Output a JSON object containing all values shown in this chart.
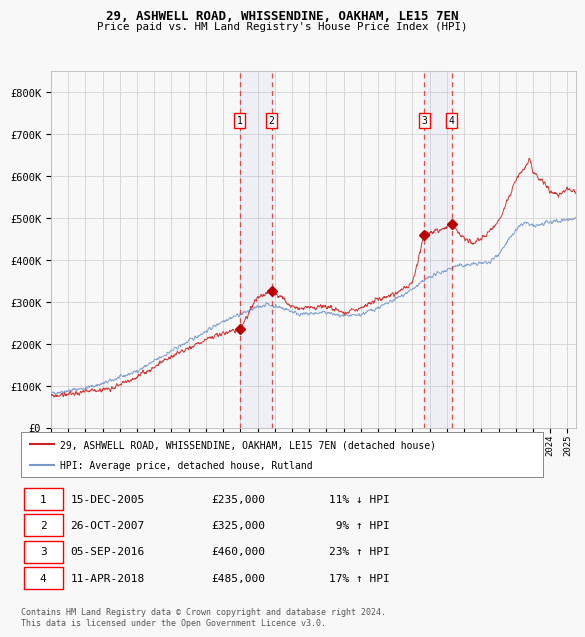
{
  "title1": "29, ASHWELL ROAD, WHISSENDINE, OAKHAM, LE15 7EN",
  "title2": "Price paid vs. HM Land Registry's House Price Index (HPI)",
  "ylim": [
    0,
    850000
  ],
  "yticks": [
    0,
    100000,
    200000,
    300000,
    400000,
    500000,
    600000,
    700000,
    800000
  ],
  "ytick_labels": [
    "£0",
    "£100K",
    "£200K",
    "£300K",
    "£400K",
    "£500K",
    "£600K",
    "£700K",
    "£800K"
  ],
  "hpi_color": "#7799cc",
  "price_color": "#cc2222",
  "marker_color": "#bb0000",
  "grid_color": "#cccccc",
  "bg_color": "#f8f8f8",
  "plot_bg_color": "#f8f8f8",
  "legend_house_label": "29, ASHWELL ROAD, WHISSENDINE, OAKHAM, LE15 7EN (detached house)",
  "legend_hpi_label": "HPI: Average price, detached house, Rutland",
  "transactions": [
    {
      "num": 1,
      "date": "15-DEC-2005",
      "price": 235000,
      "pct": "11%",
      "dir": "↓",
      "year_x": 2005.96
    },
    {
      "num": 2,
      "date": "26-OCT-2007",
      "price": 325000,
      "pct": "9%",
      "dir": "↑",
      "year_x": 2007.82
    },
    {
      "num": 3,
      "date": "05-SEP-2016",
      "price": 460000,
      "pct": "23%",
      "dir": "↑",
      "year_x": 2016.68
    },
    {
      "num": 4,
      "date": "11-APR-2018",
      "price": 485000,
      "pct": "17%",
      "dir": "↑",
      "year_x": 2018.28
    }
  ],
  "footer": "Contains HM Land Registry data © Crown copyright and database right 2024.\nThis data is licensed under the Open Government Licence v3.0.",
  "xmin": 1995.0,
  "xmax": 2025.5,
  "table_rows": [
    [
      "1",
      "15-DEC-2005",
      "£235,000",
      "11% ↓ HPI"
    ],
    [
      "2",
      "26-OCT-2007",
      "£325,000",
      " 9% ↑ HPI"
    ],
    [
      "3",
      "05-SEP-2016",
      "£460,000",
      "23% ↑ HPI"
    ],
    [
      "4",
      "11-APR-2018",
      "£485,000",
      "17% ↑ HPI"
    ]
  ]
}
